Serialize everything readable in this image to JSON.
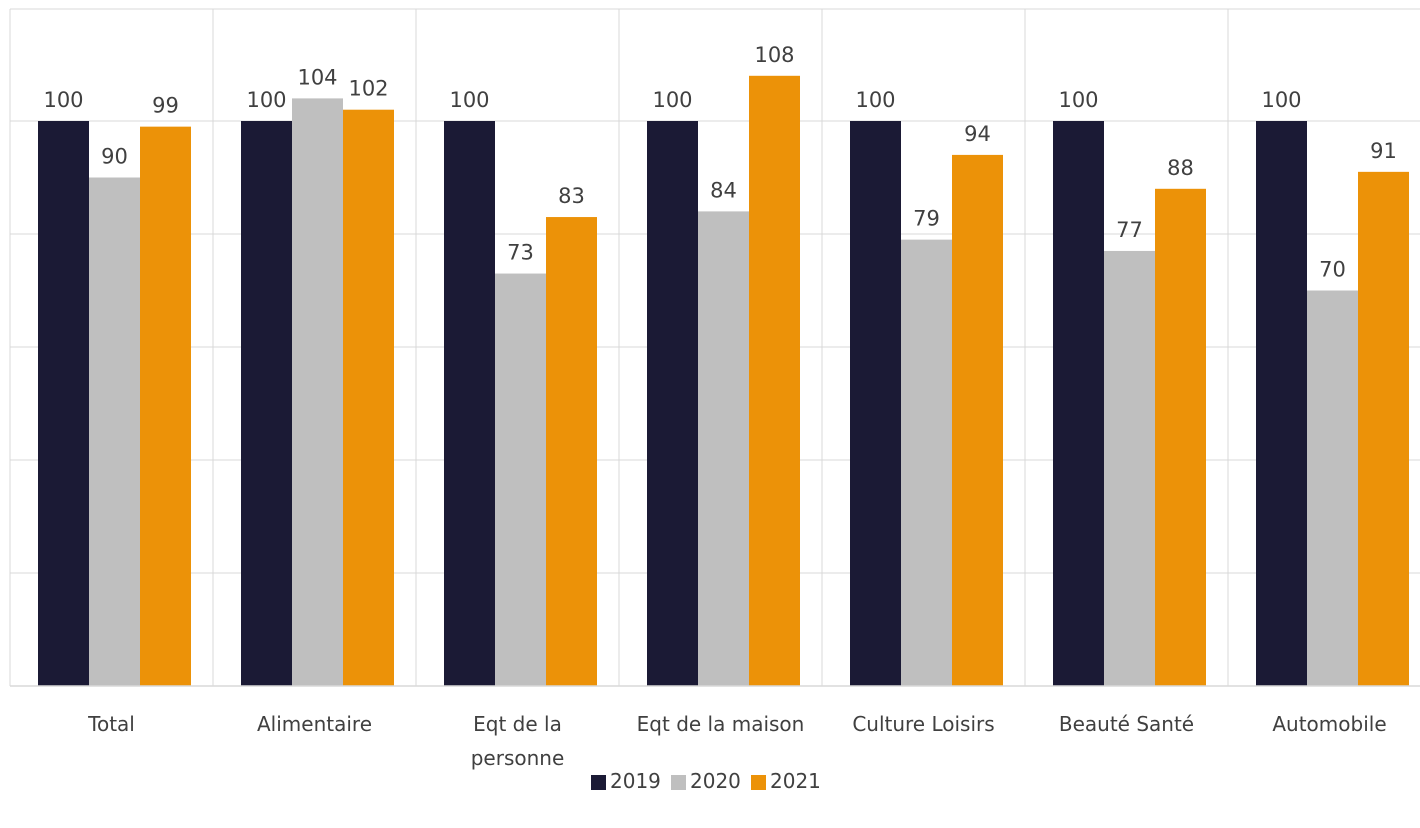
{
  "chart_data": {
    "type": "bar",
    "title": "",
    "xlabel": "",
    "ylabel": "",
    "ylim": [
      0,
      120
    ],
    "grid": true,
    "legend_position": "bottom",
    "categories": [
      [
        "Total"
      ],
      [
        "Alimentaire"
      ],
      [
        "Eqt de la",
        "personne"
      ],
      [
        "Eqt de la maison"
      ],
      [
        "Culture Loisirs"
      ],
      [
        "Beauté Santé"
      ],
      [
        "Automobile"
      ]
    ],
    "series": [
      {
        "name": "2019",
        "color": "#1b1a35",
        "values": [
          100,
          100,
          100,
          100,
          100,
          100,
          100
        ]
      },
      {
        "name": "2020",
        "color": "#bfbfbf",
        "values": [
          90,
          104,
          73,
          84,
          79,
          77,
          70
        ]
      },
      {
        "name": "2021",
        "color": "#ec9208",
        "values": [
          99,
          102,
          83,
          108,
          94,
          88,
          91
        ]
      }
    ]
  }
}
